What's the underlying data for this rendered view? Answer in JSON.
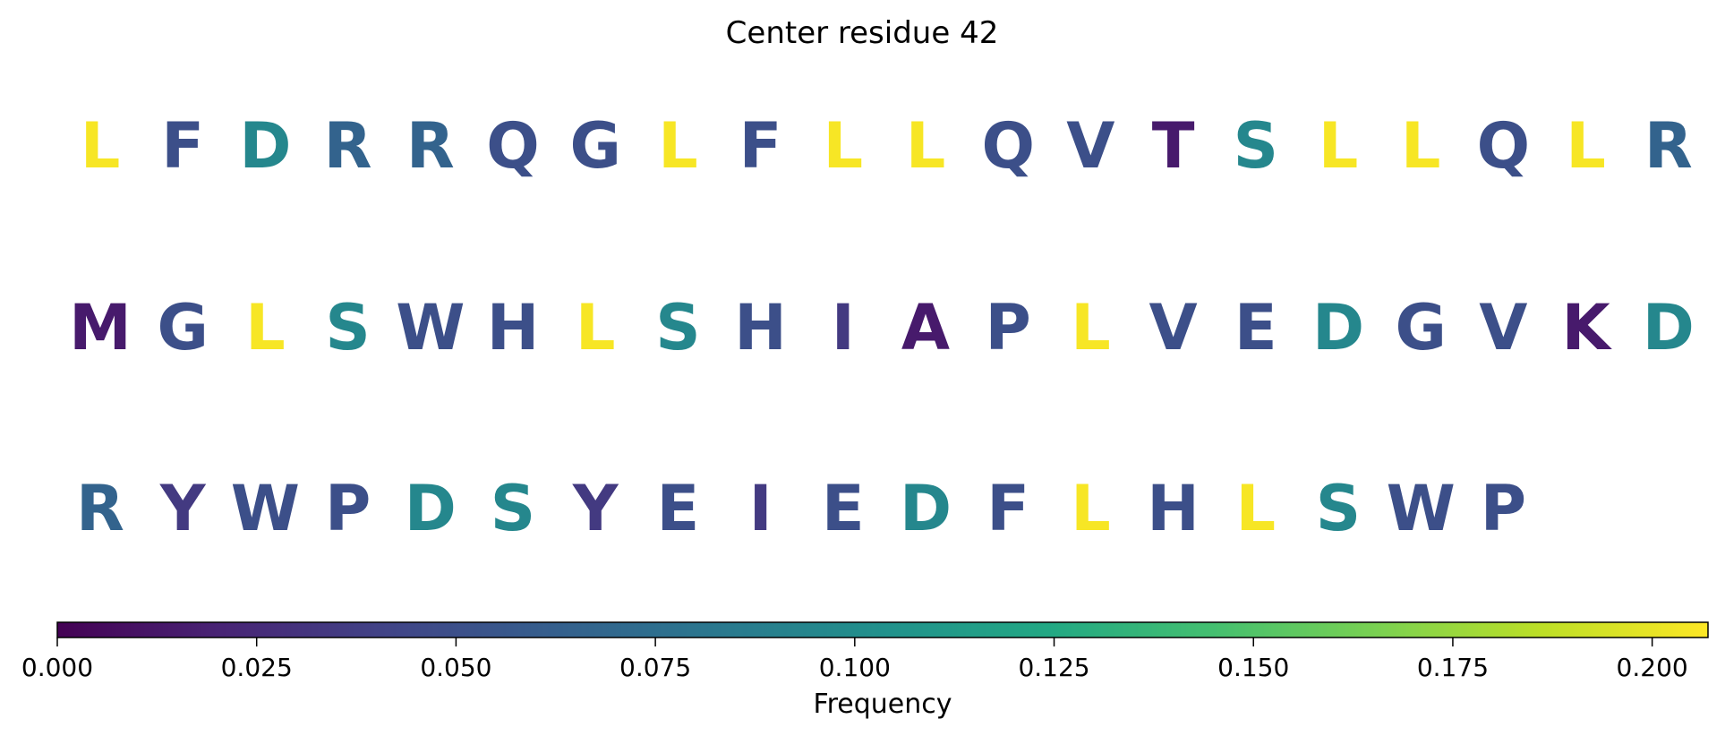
{
  "chart_data": {
    "type": "sequence-logo-grid",
    "title": "Center residue 42",
    "rows": [
      {
        "residues": [
          "L",
          "F",
          "D",
          "R",
          "R",
          "Q",
          "G",
          "L",
          "F",
          "L",
          "L",
          "Q",
          "V",
          "T",
          "S",
          "L",
          "L",
          "Q",
          "L",
          "R"
        ],
        "values": [
          0.205,
          0.05,
          0.095,
          0.065,
          0.065,
          0.05,
          0.05,
          0.205,
          0.05,
          0.205,
          0.205,
          0.05,
          0.05,
          0.015,
          0.095,
          0.205,
          0.205,
          0.05,
          0.205,
          0.065
        ]
      },
      {
        "residues": [
          "M",
          "G",
          "L",
          "S",
          "W",
          "H",
          "L",
          "S",
          "H",
          "I",
          "A",
          "P",
          "L",
          "V",
          "E",
          "D",
          "G",
          "V",
          "K",
          "D"
        ],
        "values": [
          0.015,
          0.05,
          0.205,
          0.095,
          0.05,
          0.05,
          0.205,
          0.095,
          0.05,
          0.035,
          0.015,
          0.05,
          0.205,
          0.05,
          0.05,
          0.095,
          0.05,
          0.05,
          0.015,
          0.095
        ]
      },
      {
        "residues": [
          "R",
          "Y",
          "W",
          "P",
          "D",
          "S",
          "Y",
          "E",
          "I",
          "E",
          "D",
          "F",
          "L",
          "H",
          "L",
          "S",
          "W",
          "P"
        ],
        "values": [
          0.065,
          0.035,
          0.05,
          0.05,
          0.095,
          0.095,
          0.035,
          0.05,
          0.035,
          0.05,
          0.095,
          0.05,
          0.205,
          0.05,
          0.205,
          0.095,
          0.05,
          0.05
        ]
      }
    ],
    "colorbar": {
      "colormap": "viridis",
      "range": [
        0.0,
        0.207
      ],
      "ticks": [
        0.0,
        0.025,
        0.05,
        0.075,
        0.1,
        0.125,
        0.15,
        0.175,
        0.2
      ],
      "tick_labels": [
        "0.000",
        "0.025",
        "0.050",
        "0.075",
        "0.100",
        "0.125",
        "0.150",
        "0.175",
        "0.200"
      ],
      "label": "Frequency"
    }
  }
}
